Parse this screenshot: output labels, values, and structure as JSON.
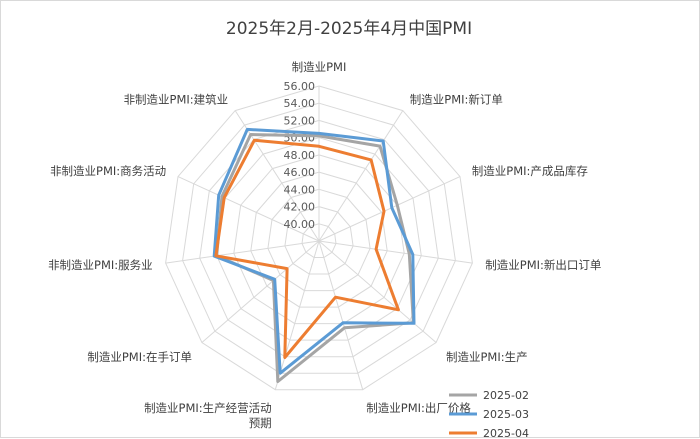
{
  "chart_data": {
    "type": "radar",
    "title": "2025年2月-2025年4月中国PMI",
    "axes": [
      [
        "制造业PMI"
      ],
      [
        "制造业PMI:新订单"
      ],
      [
        "制造业PMI:产成品库存"
      ],
      [
        "制造业PMI:新出口订单"
      ],
      [
        "制造业PMI:生产"
      ],
      [
        "制造业PMI:出厂价格"
      ],
      [
        "制造业PMI:生产经营活动",
        "预期"
      ],
      [
        "制造业PMI:在手订单"
      ],
      [
        "非制造业PMI:服务业"
      ],
      [
        "非制造业PMI:商务活动"
      ],
      [
        "非制造业PMI:建筑业"
      ]
    ],
    "rlim": [
      38,
      56
    ],
    "ticks": [
      "40.00",
      "42.00",
      "44.00",
      "46.00",
      "48.00",
      "50.00",
      "52.00",
      "54.00",
      "56.00"
    ],
    "tick_values": [
      40,
      42,
      44,
      46,
      48,
      50,
      52,
      54,
      56
    ],
    "grid_rings": [
      38,
      40,
      42,
      44,
      46,
      48,
      50,
      52,
      54,
      56
    ],
    "legend_position": "bottom-right",
    "series": [
      {
        "name": "2025-02",
        "color": "#a5a5a5",
        "values": [
          50.2,
          51.1,
          48.0,
          48.6,
          52.5,
          48.5,
          55.0,
          45.0,
          50.0,
          50.4,
          52.7
        ]
      },
      {
        "name": "2025-03",
        "color": "#5b9bd5",
        "values": [
          50.5,
          51.8,
          47.3,
          49.0,
          52.6,
          47.9,
          54.0,
          44.8,
          50.3,
          50.8,
          53.4
        ]
      },
      {
        "name": "2025-04",
        "color": "#ed7d31",
        "values": [
          49.0,
          49.2,
          46.3,
          44.7,
          50.2,
          44.8,
          52.1,
          42.9,
          50.1,
          50.1,
          51.9
        ]
      }
    ]
  }
}
